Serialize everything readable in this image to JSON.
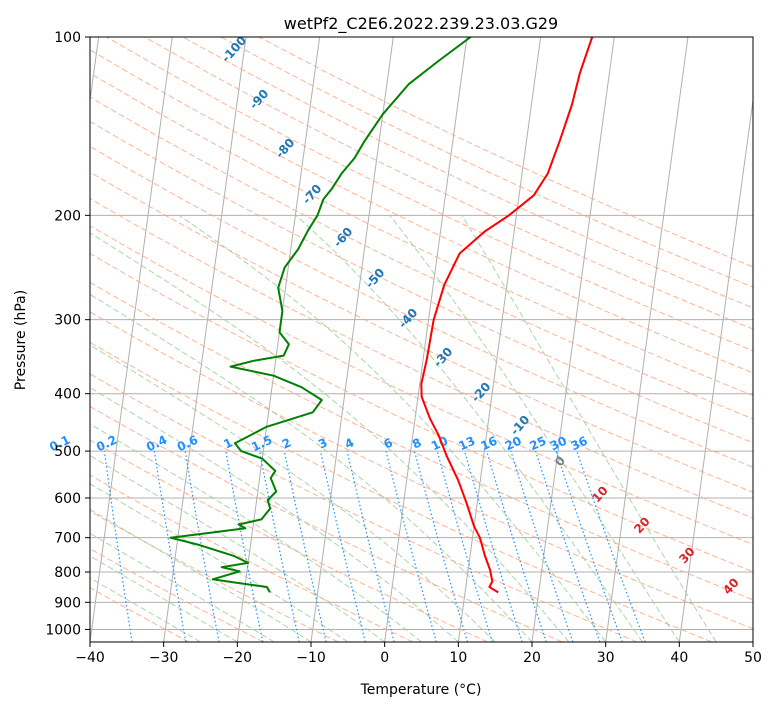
{
  "chart_data": {
    "type": "line",
    "title": "wetPf2_C2E6.2022.239.23.03.G29",
    "xlabel": "Temperature (°C)",
    "ylabel": "Pressure (hPa)",
    "xlim": [
      -40,
      50
    ],
    "ylim": [
      1050,
      100
    ],
    "x_ticks": [
      -40,
      -30,
      -20,
      -10,
      0,
      10,
      20,
      30,
      40,
      50
    ],
    "x_tick_labels": [
      "−40",
      "−30",
      "−20",
      "−10",
      "0",
      "10",
      "20",
      "30",
      "40",
      "50"
    ],
    "y_ticks": [
      100,
      200,
      300,
      400,
      500,
      600,
      700,
      800,
      900,
      1000
    ],
    "y_tick_labels": [
      "100",
      "200",
      "300",
      "400",
      "500",
      "600",
      "700",
      "800",
      "900",
      "1000"
    ],
    "grid": true,
    "series": [
      {
        "name": "temperature",
        "color": "#ff0000",
        "points": [
          [
            14.5,
            866
          ],
          [
            13.2,
            848
          ],
          [
            13.5,
            830
          ],
          [
            13.0,
            795
          ],
          [
            12.0,
            750
          ],
          [
            11.0,
            700
          ],
          [
            10.0,
            670
          ],
          [
            8.5,
            610
          ],
          [
            7.0,
            560
          ],
          [
            5.0,
            510
          ],
          [
            3.5,
            470
          ],
          [
            2.0,
            440
          ],
          [
            0.5,
            405
          ],
          [
            0.2,
            385
          ],
          [
            0.5,
            350
          ],
          [
            0.7,
            300
          ],
          [
            1.5,
            262
          ],
          [
            3.0,
            232
          ],
          [
            6.0,
            213
          ],
          [
            9.0,
            200
          ],
          [
            12.0,
            185
          ],
          [
            13.5,
            170
          ],
          [
            14.5,
            150
          ],
          [
            15.5,
            130
          ],
          [
            16.0,
            115
          ],
          [
            17.0,
            100
          ]
        ]
      },
      {
        "name": "dewpoint",
        "color": "#008000",
        "points": [
          [
            -16.5,
            866
          ],
          [
            -17.0,
            848
          ],
          [
            -23.0,
            828
          ],
          [
            -24.5,
            823
          ],
          [
            -23.0,
            812
          ],
          [
            -21.0,
            798
          ],
          [
            -23.5,
            785
          ],
          [
            -20.0,
            772
          ],
          [
            -22.0,
            752
          ],
          [
            -27.0,
            720
          ],
          [
            -31.0,
            700
          ],
          [
            -25.0,
            685
          ],
          [
            -21.0,
            675
          ],
          [
            -22.0,
            665
          ],
          [
            -19.0,
            652
          ],
          [
            -18.0,
            625
          ],
          [
            -18.5,
            605
          ],
          [
            -17.5,
            585
          ],
          [
            -18.5,
            555
          ],
          [
            -18.0,
            540
          ],
          [
            -20.0,
            515
          ],
          [
            -23.0,
            500
          ],
          [
            -24.0,
            485
          ],
          [
            -20.0,
            455
          ],
          [
            -14.0,
            430
          ],
          [
            -13.0,
            410
          ],
          [
            -16.0,
            390
          ],
          [
            -20.0,
            373
          ],
          [
            -26.0,
            360
          ],
          [
            -23.0,
            352
          ],
          [
            -19.0,
            345
          ],
          [
            -18.5,
            330
          ],
          [
            -20.0,
            315
          ],
          [
            -20.0,
            290
          ],
          [
            -21.0,
            265
          ],
          [
            -20.5,
            245
          ],
          [
            -19.0,
            228
          ],
          [
            -18.0,
            212
          ],
          [
            -17.0,
            200
          ],
          [
            -16.5,
            188
          ],
          [
            -15.5,
            180
          ],
          [
            -14.5,
            170
          ],
          [
            -13.0,
            160
          ],
          [
            -12.0,
            150
          ],
          [
            -10.0,
            135
          ],
          [
            -7.0,
            120
          ],
          [
            -3.5,
            110
          ],
          [
            0.5,
            100
          ]
        ]
      }
    ],
    "dry_adiabat_labels": [
      "-100",
      "-90",
      "-80",
      "-70",
      "-60",
      "-50",
      "-40",
      "-30",
      "-20",
      "-10",
      "0",
      "10",
      "20",
      "30",
      "40"
    ],
    "mixing_ratio_labels": [
      "0.1",
      "0.2",
      "0.4",
      "0.6",
      "1",
      "1.5",
      "2",
      "3",
      "4",
      "6",
      "8",
      "10",
      "13",
      "16",
      "20",
      "25",
      "30",
      "36"
    ]
  },
  "style": {
    "temperature_color": "#ff0000",
    "dewpoint_color": "#008000",
    "grid_color": "#b0b0b0",
    "dry_adiabat_color": "#ffa07a",
    "moist_adiabat_color": "#98c998",
    "mixing_ratio_color": "#1e90ff",
    "label_blue": "#1f77b4",
    "label_red": "#d62728",
    "label_gray": "#808080"
  }
}
